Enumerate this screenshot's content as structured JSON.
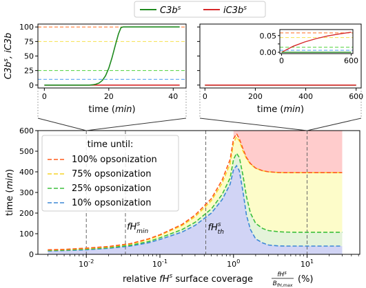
{
  "chart_data": [
    {
      "id": "top-left",
      "type": "line",
      "xlabel": "time",
      "xunit": "min",
      "ylabel": "C3b^s, iC3b^s (%)",
      "xlim": [
        -2,
        44
      ],
      "ylim": [
        -5,
        105
      ],
      "xticks": [
        0,
        20,
        40
      ],
      "yticks": [
        0,
        25,
        50,
        75,
        100
      ],
      "reference_lines": [
        {
          "y": 100,
          "color": "#ff6b1a"
        },
        {
          "y": 75,
          "color": "#f5e04a"
        },
        {
          "y": 25,
          "color": "#4cd137"
        },
        {
          "y": 10,
          "color": "#4a9cf0"
        }
      ],
      "series": [
        {
          "name": "C3b^s",
          "color": "#1e8a1e",
          "x": [
            0,
            14,
            15,
            16,
            17,
            18,
            19,
            20,
            21,
            22,
            23,
            23.8,
            24.5,
            30,
            42
          ],
          "values": [
            0,
            0,
            0.5,
            1.5,
            3.5,
            8,
            16,
            29,
            47,
            68,
            88,
            99,
            100,
            100,
            100
          ]
        },
        {
          "name": "iC3b^s",
          "color": "#d62728",
          "x": [
            0,
            42
          ],
          "values": [
            0,
            0
          ]
        }
      ]
    },
    {
      "id": "top-right",
      "type": "line",
      "xlabel": "time",
      "xunit": "min",
      "xlim": [
        -20,
        620
      ],
      "ylim": [
        -5,
        105
      ],
      "xticks": [
        0,
        200,
        400,
        600
      ],
      "yticks": [
        0,
        25,
        50,
        75,
        100
      ],
      "series": [
        {
          "name": "C3b^s",
          "color": "#1e8a1e",
          "x": [
            0,
            600
          ],
          "values": [
            0,
            0
          ]
        },
        {
          "name": "iC3b^s",
          "color": "#d62728",
          "x": [
            0,
            600
          ],
          "values": [
            0,
            0
          ]
        }
      ],
      "inset": {
        "xlim": [
          -15,
          615
        ],
        "ylim": [
          -0.004,
          0.068
        ],
        "xticks": [
          0,
          600
        ],
        "yticks": [
          0.0,
          0.025,
          0.05
        ],
        "ytick_labels": [
          "0.00",
          "",
          "0.05"
        ],
        "reference_lines": [
          {
            "y": 0.058,
            "color": "#ff6b1a"
          },
          {
            "y": 0.044,
            "color": "#f5e04a"
          },
          {
            "y": 0.015,
            "color": "#4cd137"
          },
          {
            "y": 0.006,
            "color": "#4a9cf0"
          }
        ],
        "series": [
          {
            "name": "iC3b^s",
            "color": "#d62728",
            "x": [
              0,
              100,
              200,
              300,
              400,
              500,
              600
            ],
            "values": [
              0,
              0.018,
              0.031,
              0.041,
              0.049,
              0.055,
              0.06
            ]
          },
          {
            "name": "C3b^s",
            "color": "#1e8a1e",
            "x": [
              0,
              600
            ],
            "values": [
              0,
              0
            ]
          }
        ]
      }
    },
    {
      "id": "bottom",
      "type": "line",
      "xscale": "log",
      "xlabel_prefix": "relative",
      "xlabel_var": "fH^s",
      "xlabel_mid": "surface coverage",
      "xlabel_frac_num": "fH^s",
      "xlabel_frac_den": "B_fH,max",
      "xlabel_unit": "(%)",
      "ylabel": "time",
      "yunit": "min",
      "xlim": [
        0.0022,
        52
      ],
      "ylim": [
        0,
        600
      ],
      "xticks": [
        0.01,
        0.1,
        1,
        10
      ],
      "xtick_labels": [
        "10^-2",
        "10^-1",
        "10^0",
        "10^1"
      ],
      "yticks": [
        0,
        100,
        200,
        300,
        400,
        500,
        600
      ],
      "vlines": [
        {
          "x": 0.01,
          "label": ""
        },
        {
          "x": 0.034,
          "label": "fH^s_min"
        },
        {
          "x": 0.42,
          "label": "fH^s_th"
        },
        {
          "x": 10,
          "label": ""
        }
      ],
      "legend_title": "time until:",
      "legend_position": "upper-left",
      "series": [
        {
          "name": "100% opsonization",
          "color": "#ff5a1a",
          "fill": "#ffcccc",
          "x": [
            0.003,
            0.005,
            0.01,
            0.02,
            0.04,
            0.07,
            0.1,
            0.2,
            0.3,
            0.5,
            0.7,
            0.9,
            1.0,
            1.1,
            1.2,
            1.35,
            1.5,
            1.7,
            2.0,
            2.5,
            3,
            4,
            5,
            7,
            10,
            20,
            30
          ],
          "values": [
            22,
            24,
            30,
            38,
            52,
            75,
            95,
            145,
            190,
            270,
            360,
            460,
            560,
            585,
            560,
            510,
            470,
            440,
            418,
            405,
            400,
            397,
            396,
            396,
            396,
            396,
            396
          ]
        },
        {
          "name": "75% opsonization",
          "color": "#f5d327",
          "fill": "#fdfcc9",
          "x": [
            0.003,
            0.005,
            0.01,
            0.02,
            0.04,
            0.07,
            0.1,
            0.2,
            0.3,
            0.5,
            0.7,
            0.9,
            1.0,
            1.1,
            1.2,
            1.35,
            1.5,
            1.7,
            2.0,
            2.5,
            3,
            4,
            5,
            7,
            10,
            20,
            30
          ],
          "values": [
            21,
            23,
            28,
            36,
            50,
            72,
            92,
            140,
            182,
            260,
            345,
            440,
            540,
            570,
            550,
            500,
            465,
            437,
            418,
            405,
            400,
            397,
            396,
            396,
            396,
            396,
            396
          ]
        },
        {
          "name": "25% opsonization",
          "color": "#3bbf3b",
          "fill": "#e4f3da",
          "x": [
            0.003,
            0.005,
            0.01,
            0.02,
            0.04,
            0.07,
            0.1,
            0.2,
            0.3,
            0.5,
            0.7,
            0.9,
            1.0,
            1.1,
            1.2,
            1.35,
            1.5,
            1.7,
            2.0,
            2.5,
            3,
            4,
            5,
            7,
            10,
            20,
            30
          ],
          "values": [
            18,
            20,
            25,
            32,
            44,
            62,
            80,
            120,
            155,
            220,
            290,
            370,
            460,
            490,
            470,
            380,
            280,
            200,
            150,
            125,
            115,
            110,
            108,
            107,
            107,
            107,
            107
          ]
        },
        {
          "name": "10% opsonization",
          "color": "#3b87d6",
          "fill": "#d1d4f5",
          "x": [
            0.003,
            0.005,
            0.01,
            0.02,
            0.04,
            0.07,
            0.1,
            0.2,
            0.3,
            0.5,
            0.7,
            0.9,
            1.0,
            1.1,
            1.2,
            1.35,
            1.5,
            1.7,
            2.0,
            2.5,
            3,
            4,
            5,
            7,
            10,
            20,
            30
          ],
          "values": [
            16,
            18,
            22,
            29,
            40,
            56,
            72,
            108,
            140,
            200,
            265,
            340,
            410,
            430,
            405,
            300,
            190,
            120,
            75,
            55,
            45,
            41,
            40,
            40,
            40,
            40,
            40
          ]
        }
      ]
    }
  ]
}
